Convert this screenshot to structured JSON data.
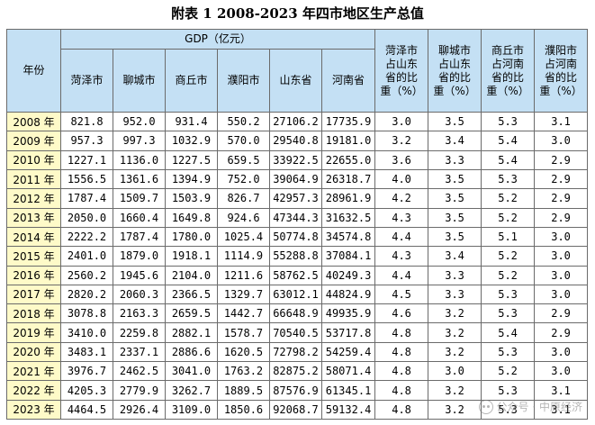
{
  "title": "附表 1 2008-2023 年四市地区生产总值",
  "headers": {
    "year": "年份",
    "gdp_group": "GDP（亿元）",
    "columns": [
      "菏泽市",
      "聊城市",
      "商丘市",
      "濮阳市",
      "山东省",
      "河南省"
    ],
    "ratios": [
      "菏泽市占山东省的比重（%）",
      "聊城市占山东省的比重（%）",
      "商丘市占河南省的比重（%）",
      "濮阳市占河南省的比重（%）"
    ],
    "ratios_lines": [
      [
        "菏泽市",
        "占山东",
        "省的比",
        "重（%）"
      ],
      [
        "聊城市",
        "占山东",
        "省的比",
        "重（%）"
      ],
      [
        "商丘市",
        "占河南",
        "省的比",
        "重（%）"
      ],
      [
        "濮阳市",
        "占河南",
        "省的比",
        "重（%）"
      ]
    ]
  },
  "rows": [
    {
      "year": "2008 年",
      "gdp": [
        "821.8",
        "952.0",
        "931.4",
        "550.2",
        "27106.2",
        "17735.9"
      ],
      "ratio": [
        "3.0",
        "3.5",
        "5.3",
        "3.1"
      ]
    },
    {
      "year": "2009 年",
      "gdp": [
        "957.3",
        "997.3",
        "1032.9",
        "570.0",
        "29540.8",
        "19181.0"
      ],
      "ratio": [
        "3.2",
        "3.4",
        "5.4",
        "3.0"
      ]
    },
    {
      "year": "2010 年",
      "gdp": [
        "1227.1",
        "1136.0",
        "1227.5",
        "659.5",
        "33922.5",
        "22655.0"
      ],
      "ratio": [
        "3.6",
        "3.3",
        "5.4",
        "2.9"
      ]
    },
    {
      "year": "2011 年",
      "gdp": [
        "1556.5",
        "1361.6",
        "1394.9",
        "752.0",
        "39064.9",
        "26318.7"
      ],
      "ratio": [
        "4.0",
        "3.5",
        "5.3",
        "2.9"
      ]
    },
    {
      "year": "2012 年",
      "gdp": [
        "1787.4",
        "1509.7",
        "1503.9",
        "826.7",
        "42957.3",
        "28961.9"
      ],
      "ratio": [
        "4.2",
        "3.5",
        "5.2",
        "2.9"
      ]
    },
    {
      "year": "2013 年",
      "gdp": [
        "2050.0",
        "1660.4",
        "1649.8",
        "924.6",
        "47344.3",
        "31632.5"
      ],
      "ratio": [
        "4.3",
        "3.5",
        "5.2",
        "2.9"
      ]
    },
    {
      "year": "2014 年",
      "gdp": [
        "2222.2",
        "1787.4",
        "1780.0",
        "1025.4",
        "50774.8",
        "34574.8"
      ],
      "ratio": [
        "4.4",
        "3.5",
        "5.1",
        "3.0"
      ]
    },
    {
      "year": "2015 年",
      "gdp": [
        "2401.0",
        "1879.0",
        "1918.1",
        "1114.9",
        "55288.8",
        "37084.1"
      ],
      "ratio": [
        "4.3",
        "3.4",
        "5.2",
        "3.0"
      ]
    },
    {
      "year": "2016 年",
      "gdp": [
        "2560.2",
        "1945.6",
        "2104.0",
        "1211.6",
        "58762.5",
        "40249.3"
      ],
      "ratio": [
        "4.4",
        "3.3",
        "5.2",
        "3.0"
      ]
    },
    {
      "year": "2017 年",
      "gdp": [
        "2820.2",
        "2060.3",
        "2366.5",
        "1329.7",
        "63012.1",
        "44824.9"
      ],
      "ratio": [
        "4.5",
        "3.3",
        "5.3",
        "3.0"
      ]
    },
    {
      "year": "2018 年",
      "gdp": [
        "3078.8",
        "2163.3",
        "2659.5",
        "1442.7",
        "66648.9",
        "49935.9"
      ],
      "ratio": [
        "4.6",
        "3.2",
        "5.3",
        "2.9"
      ]
    },
    {
      "year": "2019 年",
      "gdp": [
        "3410.0",
        "2259.8",
        "2882.1",
        "1578.7",
        "70540.5",
        "53717.8"
      ],
      "ratio": [
        "4.8",
        "3.2",
        "5.4",
        "2.9"
      ]
    },
    {
      "year": "2020 年",
      "gdp": [
        "3483.1",
        "2337.1",
        "2886.6",
        "1620.5",
        "72798.2",
        "54259.4"
      ],
      "ratio": [
        "4.8",
        "3.2",
        "5.3",
        "3.0"
      ]
    },
    {
      "year": "2021 年",
      "gdp": [
        "3976.7",
        "2462.5",
        "3041.0",
        "1763.2",
        "82875.2",
        "58071.4"
      ],
      "ratio": [
        "4.8",
        "3.0",
        "5.2",
        "3.0"
      ]
    },
    {
      "year": "2022 年",
      "gdp": [
        "4205.3",
        "2779.9",
        "3262.7",
        "1889.5",
        "87576.9",
        "61345.1"
      ],
      "ratio": [
        "4.8",
        "3.2",
        "5.3",
        "3.1"
      ]
    },
    {
      "year": "2023 年",
      "gdp": [
        "4464.5",
        "2926.4",
        "3109.0",
        "1850.6",
        "92068.7",
        "59132.4"
      ],
      "ratio": [
        "4.8",
        "3.2",
        "5.3",
        "3.1"
      ]
    }
  ],
  "watermark": "公众号 · 中原经济",
  "colors": {
    "header_bg": "#c4e0f4",
    "year_bg": "#fefac8",
    "border": "#6b6b6b"
  }
}
